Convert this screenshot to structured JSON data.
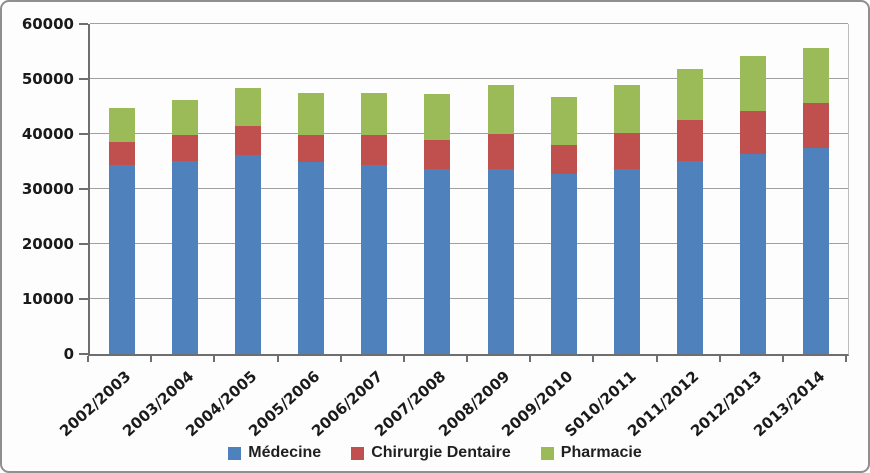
{
  "chart_data": {
    "type": "bar",
    "stacked": true,
    "title": "",
    "xlabel": "",
    "ylabel": "",
    "grid": true,
    "legend_position": "bottom",
    "x_tick_rotation_deg": -42,
    "ylim": [
      0,
      60000
    ],
    "yticks": [
      "0",
      "10000",
      "20000",
      "30000",
      "40000",
      "50000",
      "60000"
    ],
    "categories": [
      "2002/2003",
      "2003/2004",
      "2004/2005",
      "2005/2006",
      "2006/2007",
      "2007/2008",
      "2008/2009",
      "2009/2010",
      "S010/2011",
      "2011/2012",
      "2012/2013",
      "2013/2014"
    ],
    "series": [
      {
        "name": "Médecine",
        "color": "#4F81BD",
        "values": [
          34400,
          35100,
          36200,
          35000,
          34400,
          33700,
          33600,
          32700,
          33600,
          35100,
          36300,
          37400
        ]
      },
      {
        "name": "Chirurgie Dentaire",
        "color": "#C0504D",
        "values": [
          4200,
          4700,
          5200,
          4900,
          5500,
          5200,
          6400,
          5300,
          6500,
          7500,
          7800,
          8300
        ]
      },
      {
        "name": "Pharmacie",
        "color": "#9BBB59",
        "values": [
          6100,
          6300,
          7000,
          7600,
          7500,
          8300,
          9000,
          8700,
          8800,
          9300,
          10000,
          10000
        ]
      }
    ],
    "totals": [
      44700,
      46100,
      48400,
      47500,
      47400,
      47200,
      49000,
      46700,
      48900,
      51900,
      54100,
      55700
    ]
  }
}
